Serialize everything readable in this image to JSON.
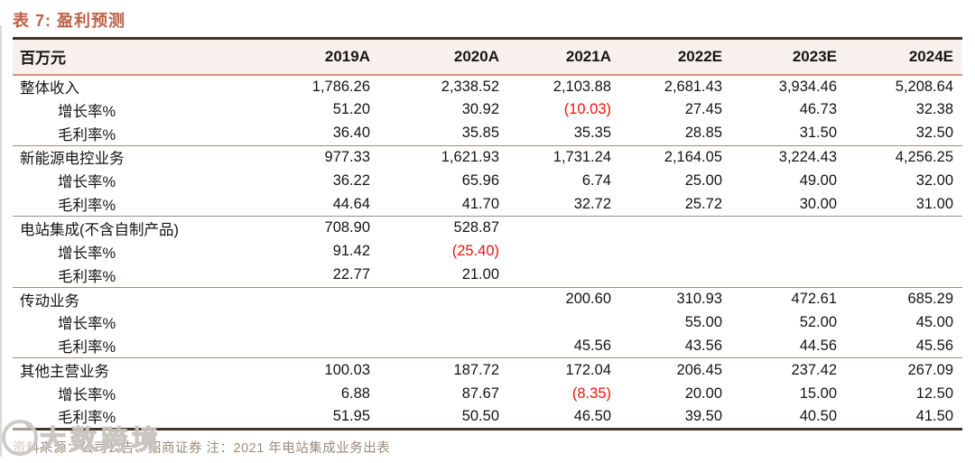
{
  "page": {
    "title": "表 7: 盈利预测"
  },
  "colors": {
    "accent_title": "#bc5f43",
    "header_background": "#f8f0ec",
    "dark_border": "#46332a",
    "salmon_border": "#d6937a",
    "section_divider": "#a28b7c",
    "negative_value": "#ee130b",
    "footer_text": "#9a8b7e"
  },
  "table": {
    "unit_header": "百万元",
    "columns": [
      "2019A",
      "2020A",
      "2021A",
      "2022E",
      "2023E",
      "2024E"
    ],
    "sections": [
      {
        "rows": [
          {
            "label": "整体收入",
            "indent": false,
            "values": [
              "1,786.26",
              "2,338.52",
              "2,103.88",
              "2,681.43",
              "3,934.46",
              "5,208.64"
            ]
          },
          {
            "label": "增长率%",
            "indent": true,
            "values": [
              "51.20",
              "30.92",
              "(10.03)",
              "27.45",
              "46.73",
              "32.38"
            ]
          },
          {
            "label": "毛利率%",
            "indent": true,
            "values": [
              "36.40",
              "35.85",
              "35.35",
              "28.85",
              "31.50",
              "32.50"
            ]
          }
        ]
      },
      {
        "rows": [
          {
            "label": "新能源电控业务",
            "indent": false,
            "values": [
              "977.33",
              "1,621.93",
              "1,731.24",
              "2,164.05",
              "3,224.43",
              "4,256.25"
            ]
          },
          {
            "label": "增长率%",
            "indent": true,
            "values": [
              "36.22",
              "65.96",
              "6.74",
              "25.00",
              "49.00",
              "32.00"
            ]
          },
          {
            "label": "毛利率%",
            "indent": true,
            "values": [
              "44.64",
              "41.70",
              "32.72",
              "25.72",
              "30.00",
              "31.00"
            ]
          }
        ]
      },
      {
        "rows": [
          {
            "label": "电站集成(不含自制产品)",
            "indent": false,
            "values": [
              "708.90",
              "528.87",
              "",
              "",
              "",
              ""
            ]
          },
          {
            "label": "增长率%",
            "indent": true,
            "values": [
              "91.42",
              "(25.40)",
              "",
              "",
              "",
              ""
            ]
          },
          {
            "label": "毛利率%",
            "indent": true,
            "values": [
              "22.77",
              "21.00",
              "",
              "",
              "",
              ""
            ]
          }
        ]
      },
      {
        "rows": [
          {
            "label": "传动业务",
            "indent": false,
            "values": [
              "",
              "",
              "200.60",
              "310.93",
              "472.61",
              "685.29"
            ]
          },
          {
            "label": "增长率%",
            "indent": true,
            "values": [
              "",
              "",
              "",
              "55.00",
              "52.00",
              "45.00"
            ]
          },
          {
            "label": "毛利率%",
            "indent": true,
            "values": [
              "",
              "",
              "45.56",
              "43.56",
              "44.56",
              "45.56"
            ]
          }
        ]
      },
      {
        "rows": [
          {
            "label": "其他主营业务",
            "indent": false,
            "values": [
              "100.03",
              "187.72",
              "172.04",
              "206.45",
              "237.42",
              "267.09"
            ]
          },
          {
            "label": "增长率%",
            "indent": true,
            "values": [
              "6.88",
              "87.67",
              "(8.35)",
              "20.00",
              "15.00",
              "12.50"
            ]
          },
          {
            "label": "毛利率%",
            "indent": true,
            "values": [
              "51.95",
              "50.50",
              "46.50",
              "39.50",
              "40.50",
              "41.50"
            ]
          }
        ]
      }
    ]
  },
  "footer": {
    "source_note": "资料来源：公司公告、招商证券 注：2021 年电站集成业务出表"
  },
  "watermark": {
    "text": "大数跨境"
  }
}
